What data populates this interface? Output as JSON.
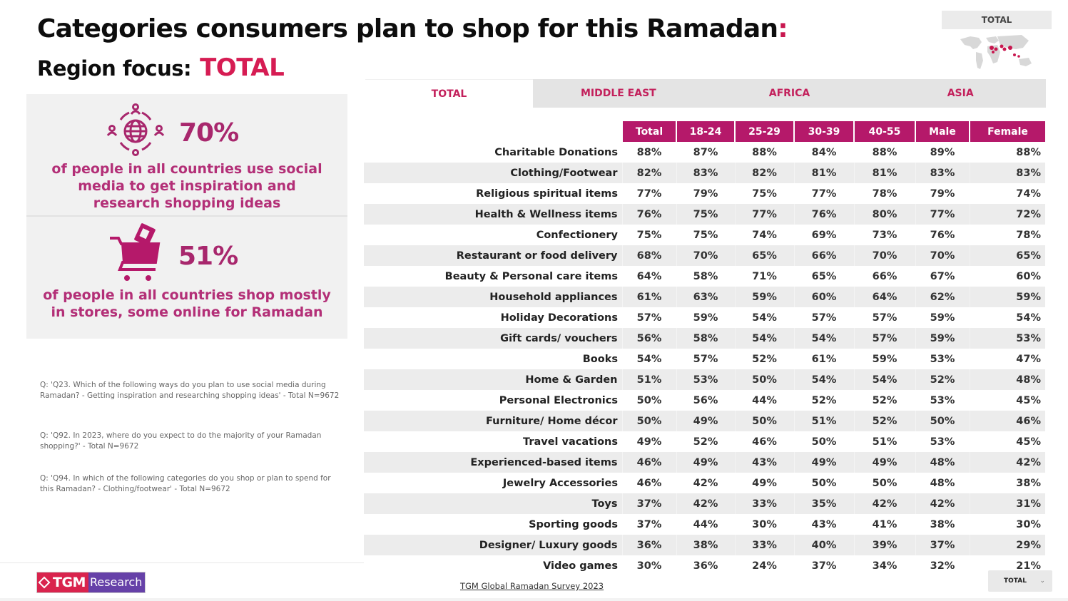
{
  "header": {
    "title": "Categories consumers plan to shop for this Ramadan",
    "title_suffix": ":",
    "region_label": "Region focus:",
    "region_value": "TOTAL"
  },
  "map_widget": {
    "label": "TOTAL",
    "icon": "world-map-icon"
  },
  "stats": [
    {
      "icon": "social-globe-people-icon",
      "value": "70%",
      "description": "of people in all countries use social media to get inspiration and research shopping ideas"
    },
    {
      "icon": "shopping-cart-icon",
      "value": "51%",
      "description": "of people in all countries shop mostly in stores, some online for Ramadan"
    }
  ],
  "notes": [
    "Q: 'Q23. Which of the following ways do you plan to use social media during Ramadan? - Getting inspiration and researching shopping ideas' - Total N=9672",
    "Q: 'Q92. In 2023, where do you expect to do the majority of your Ramadan shopping?' - Total N=9672",
    "Q: 'Q94. In which of the following categories do you shop or plan to spend for this Ramadan? - Clothing/footwear' - Total N=9672"
  ],
  "tabs": [
    {
      "label": "TOTAL",
      "active": true
    },
    {
      "label": "MIDDLE EAST",
      "active": false
    },
    {
      "label": "AFRICA",
      "active": false
    },
    {
      "label": "ASIA",
      "active": false
    }
  ],
  "table": {
    "columns": [
      "Total",
      "18-24",
      "25-29",
      "30-39",
      "40-55",
      "Male",
      "Female"
    ],
    "rows": [
      {
        "category": "Charitable Donations",
        "values": [
          "88%",
          "87%",
          "88%",
          "84%",
          "88%",
          "89%",
          "88%"
        ]
      },
      {
        "category": "Clothing/Footwear",
        "values": [
          "82%",
          "83%",
          "82%",
          "81%",
          "81%",
          "83%",
          "83%"
        ]
      },
      {
        "category": "Religious spiritual items",
        "values": [
          "77%",
          "79%",
          "75%",
          "77%",
          "78%",
          "79%",
          "74%"
        ]
      },
      {
        "category": "Health & Wellness items",
        "values": [
          "76%",
          "75%",
          "77%",
          "76%",
          "80%",
          "77%",
          "72%"
        ]
      },
      {
        "category": "Confectionery",
        "values": [
          "75%",
          "75%",
          "74%",
          "69%",
          "73%",
          "76%",
          "78%"
        ]
      },
      {
        "category": "Restaurant or food delivery",
        "values": [
          "68%",
          "70%",
          "65%",
          "66%",
          "70%",
          "70%",
          "65%"
        ]
      },
      {
        "category": "Beauty & Personal care items",
        "values": [
          "64%",
          "58%",
          "71%",
          "65%",
          "66%",
          "67%",
          "60%"
        ]
      },
      {
        "category": "Household appliances",
        "values": [
          "61%",
          "63%",
          "59%",
          "60%",
          "64%",
          "62%",
          "59%"
        ]
      },
      {
        "category": "Holiday Decorations",
        "values": [
          "57%",
          "59%",
          "54%",
          "57%",
          "57%",
          "59%",
          "54%"
        ]
      },
      {
        "category": "Gift cards/ vouchers",
        "values": [
          "56%",
          "58%",
          "54%",
          "54%",
          "57%",
          "59%",
          "53%"
        ]
      },
      {
        "category": "Books",
        "values": [
          "54%",
          "57%",
          "52%",
          "61%",
          "59%",
          "53%",
          "47%"
        ]
      },
      {
        "category": "Home & Garden",
        "values": [
          "51%",
          "53%",
          "50%",
          "54%",
          "54%",
          "52%",
          "48%"
        ]
      },
      {
        "category": "Personal Electronics",
        "values": [
          "50%",
          "56%",
          "44%",
          "52%",
          "52%",
          "53%",
          "45%"
        ]
      },
      {
        "category": "Furniture/ Home décor",
        "values": [
          "50%",
          "49%",
          "50%",
          "51%",
          "52%",
          "50%",
          "46%"
        ]
      },
      {
        "category": "Travel vacations",
        "values": [
          "49%",
          "52%",
          "46%",
          "50%",
          "51%",
          "53%",
          "45%"
        ]
      },
      {
        "category": "Experienced-based items",
        "values": [
          "46%",
          "49%",
          "43%",
          "49%",
          "49%",
          "48%",
          "42%"
        ]
      },
      {
        "category": "Jewelry Accessories",
        "values": [
          "46%",
          "42%",
          "49%",
          "50%",
          "50%",
          "48%",
          "38%"
        ]
      },
      {
        "category": "Toys",
        "values": [
          "37%",
          "42%",
          "33%",
          "35%",
          "42%",
          "42%",
          "31%"
        ]
      },
      {
        "category": "Sporting goods",
        "values": [
          "37%",
          "44%",
          "30%",
          "43%",
          "41%",
          "38%",
          "30%"
        ]
      },
      {
        "category": "Designer/ Luxury goods",
        "values": [
          "36%",
          "38%",
          "33%",
          "40%",
          "39%",
          "37%",
          "29%"
        ]
      },
      {
        "category": "Video games",
        "values": [
          "30%",
          "36%",
          "24%",
          "37%",
          "34%",
          "32%",
          "21%"
        ]
      }
    ]
  },
  "footer": {
    "logo_left": "TGM",
    "logo_right": "Research",
    "source_link": "TGM Global Ramadan Survey 2023",
    "region_select_value": "TOTAL"
  },
  "colors": {
    "accent": "#d61c53",
    "header_magenta": "#b5196a",
    "stat_purple": "#a8276d",
    "tab_text": "#c3215c",
    "logo_red": "#d9234d",
    "logo_purple": "#6641a8"
  }
}
